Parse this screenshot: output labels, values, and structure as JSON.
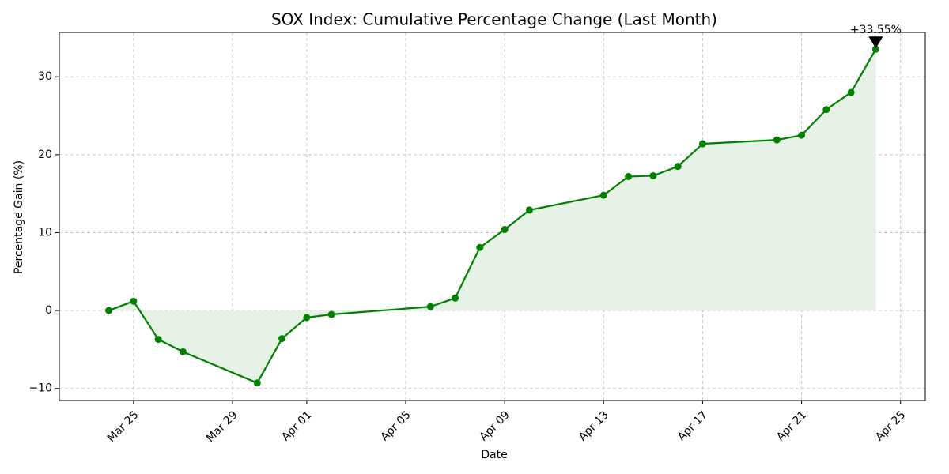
{
  "chart_data": {
    "type": "line",
    "title": "SOX Index: Cumulative Percentage Change (Last Month)",
    "xlabel": "Date",
    "ylabel": "Percentage Gain (%)",
    "x": [
      "Mar 24",
      "Mar 25",
      "Mar 26",
      "Mar 27",
      "Mar 30",
      "Mar 31",
      "Apr 01",
      "Apr 02",
      "Apr 06",
      "Apr 07",
      "Apr 08",
      "Apr 09",
      "Apr 10",
      "Apr 13",
      "Apr 14",
      "Apr 15",
      "Apr 16",
      "Apr 17",
      "Apr 20",
      "Apr 21",
      "Apr 22",
      "Apr 23",
      "Apr 24"
    ],
    "series": [
      {
        "color": "#008000",
        "fill": "#e5f2e5",
        "values": [
          0,
          1.2,
          -3.7,
          -5.3,
          -9.3,
          -3.6,
          -0.9,
          -0.5,
          0.5,
          1.6,
          8.1,
          10.4,
          12.9,
          14.8,
          17.2,
          17.3,
          18.5,
          21.4,
          21.9,
          22.5,
          25.8,
          28.0,
          33.55
        ]
      }
    ],
    "annotation": {
      "text": "+33.55%"
    },
    "xlim": [
      "Mar 22",
      "Apr 26"
    ],
    "xticks": [
      "Mar 25",
      "Mar 29",
      "Apr 01",
      "Apr 05",
      "Apr 09",
      "Apr 13",
      "Apr 17",
      "Apr 21",
      "Apr 25"
    ],
    "ylim": [
      -11.55,
      35.7
    ],
    "yticks": [
      {
        "value": -10,
        "label": "−10"
      },
      0,
      10,
      20,
      30
    ],
    "grid": true
  }
}
